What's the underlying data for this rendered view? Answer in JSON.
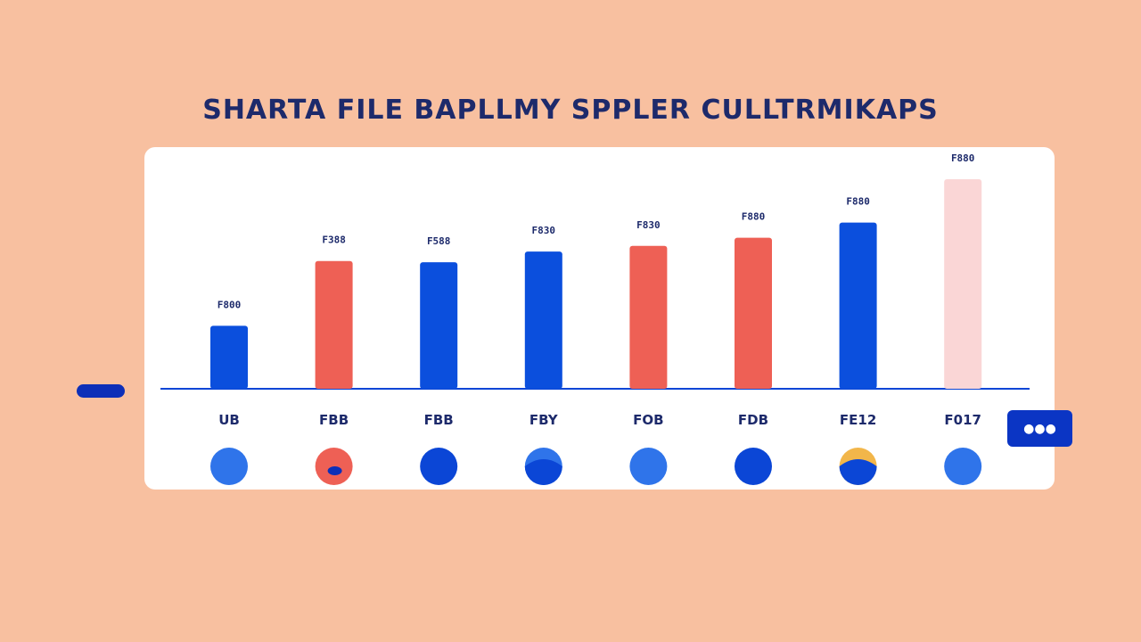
{
  "title": "SHARTA FILE BAPLLMY SPPLER CULLTRMIKAPS",
  "right_pill_text": "●●●",
  "colors": {
    "background": "#F8C0A0",
    "blue": "#0B4FDD",
    "red": "#EE6055",
    "pink": "#FAD6D6",
    "navy": "#1D2A6B",
    "circle_light": "#2F74EA",
    "circle_dark": "#0B46D6",
    "accent_yellow": "#F2B64A"
  },
  "chart_data": {
    "type": "bar",
    "categories": [
      "UB",
      "FBB",
      "FBB",
      "FBY",
      "FOB",
      "FDB",
      "FE12",
      "F017"
    ],
    "values": [
      100,
      203,
      201,
      218,
      227,
      240,
      264,
      333
    ],
    "data_labels": [
      "F800",
      "F388",
      "F588",
      "F830",
      "F830",
      "F880",
      "F880",
      "F880"
    ],
    "bar_colors": [
      "#0B4FDD",
      "#EE6055",
      "#0B4FDD",
      "#0B4FDD",
      "#EE6055",
      "#EE6055",
      "#0B4FDD",
      "#FAD6D6"
    ],
    "circles": [
      {
        "style": "solid",
        "color": "#2F74EA"
      },
      {
        "style": "dot",
        "color": "#EE6055",
        "inner": "#0D2FB8"
      },
      {
        "style": "solid",
        "color": "#0B46D6"
      },
      {
        "style": "half",
        "color": "#0B46D6",
        "top": "#2F74EA"
      },
      {
        "style": "solid",
        "color": "#2F74EA"
      },
      {
        "style": "solid",
        "color": "#0B46D6"
      },
      {
        "style": "half",
        "color": "#0B46D6",
        "top": "#F2B64A"
      },
      {
        "style": "solid",
        "color": "#2F74EA"
      }
    ],
    "ylim": [
      0,
      340
    ],
    "grid": false,
    "xlabel": "",
    "ylabel": ""
  }
}
